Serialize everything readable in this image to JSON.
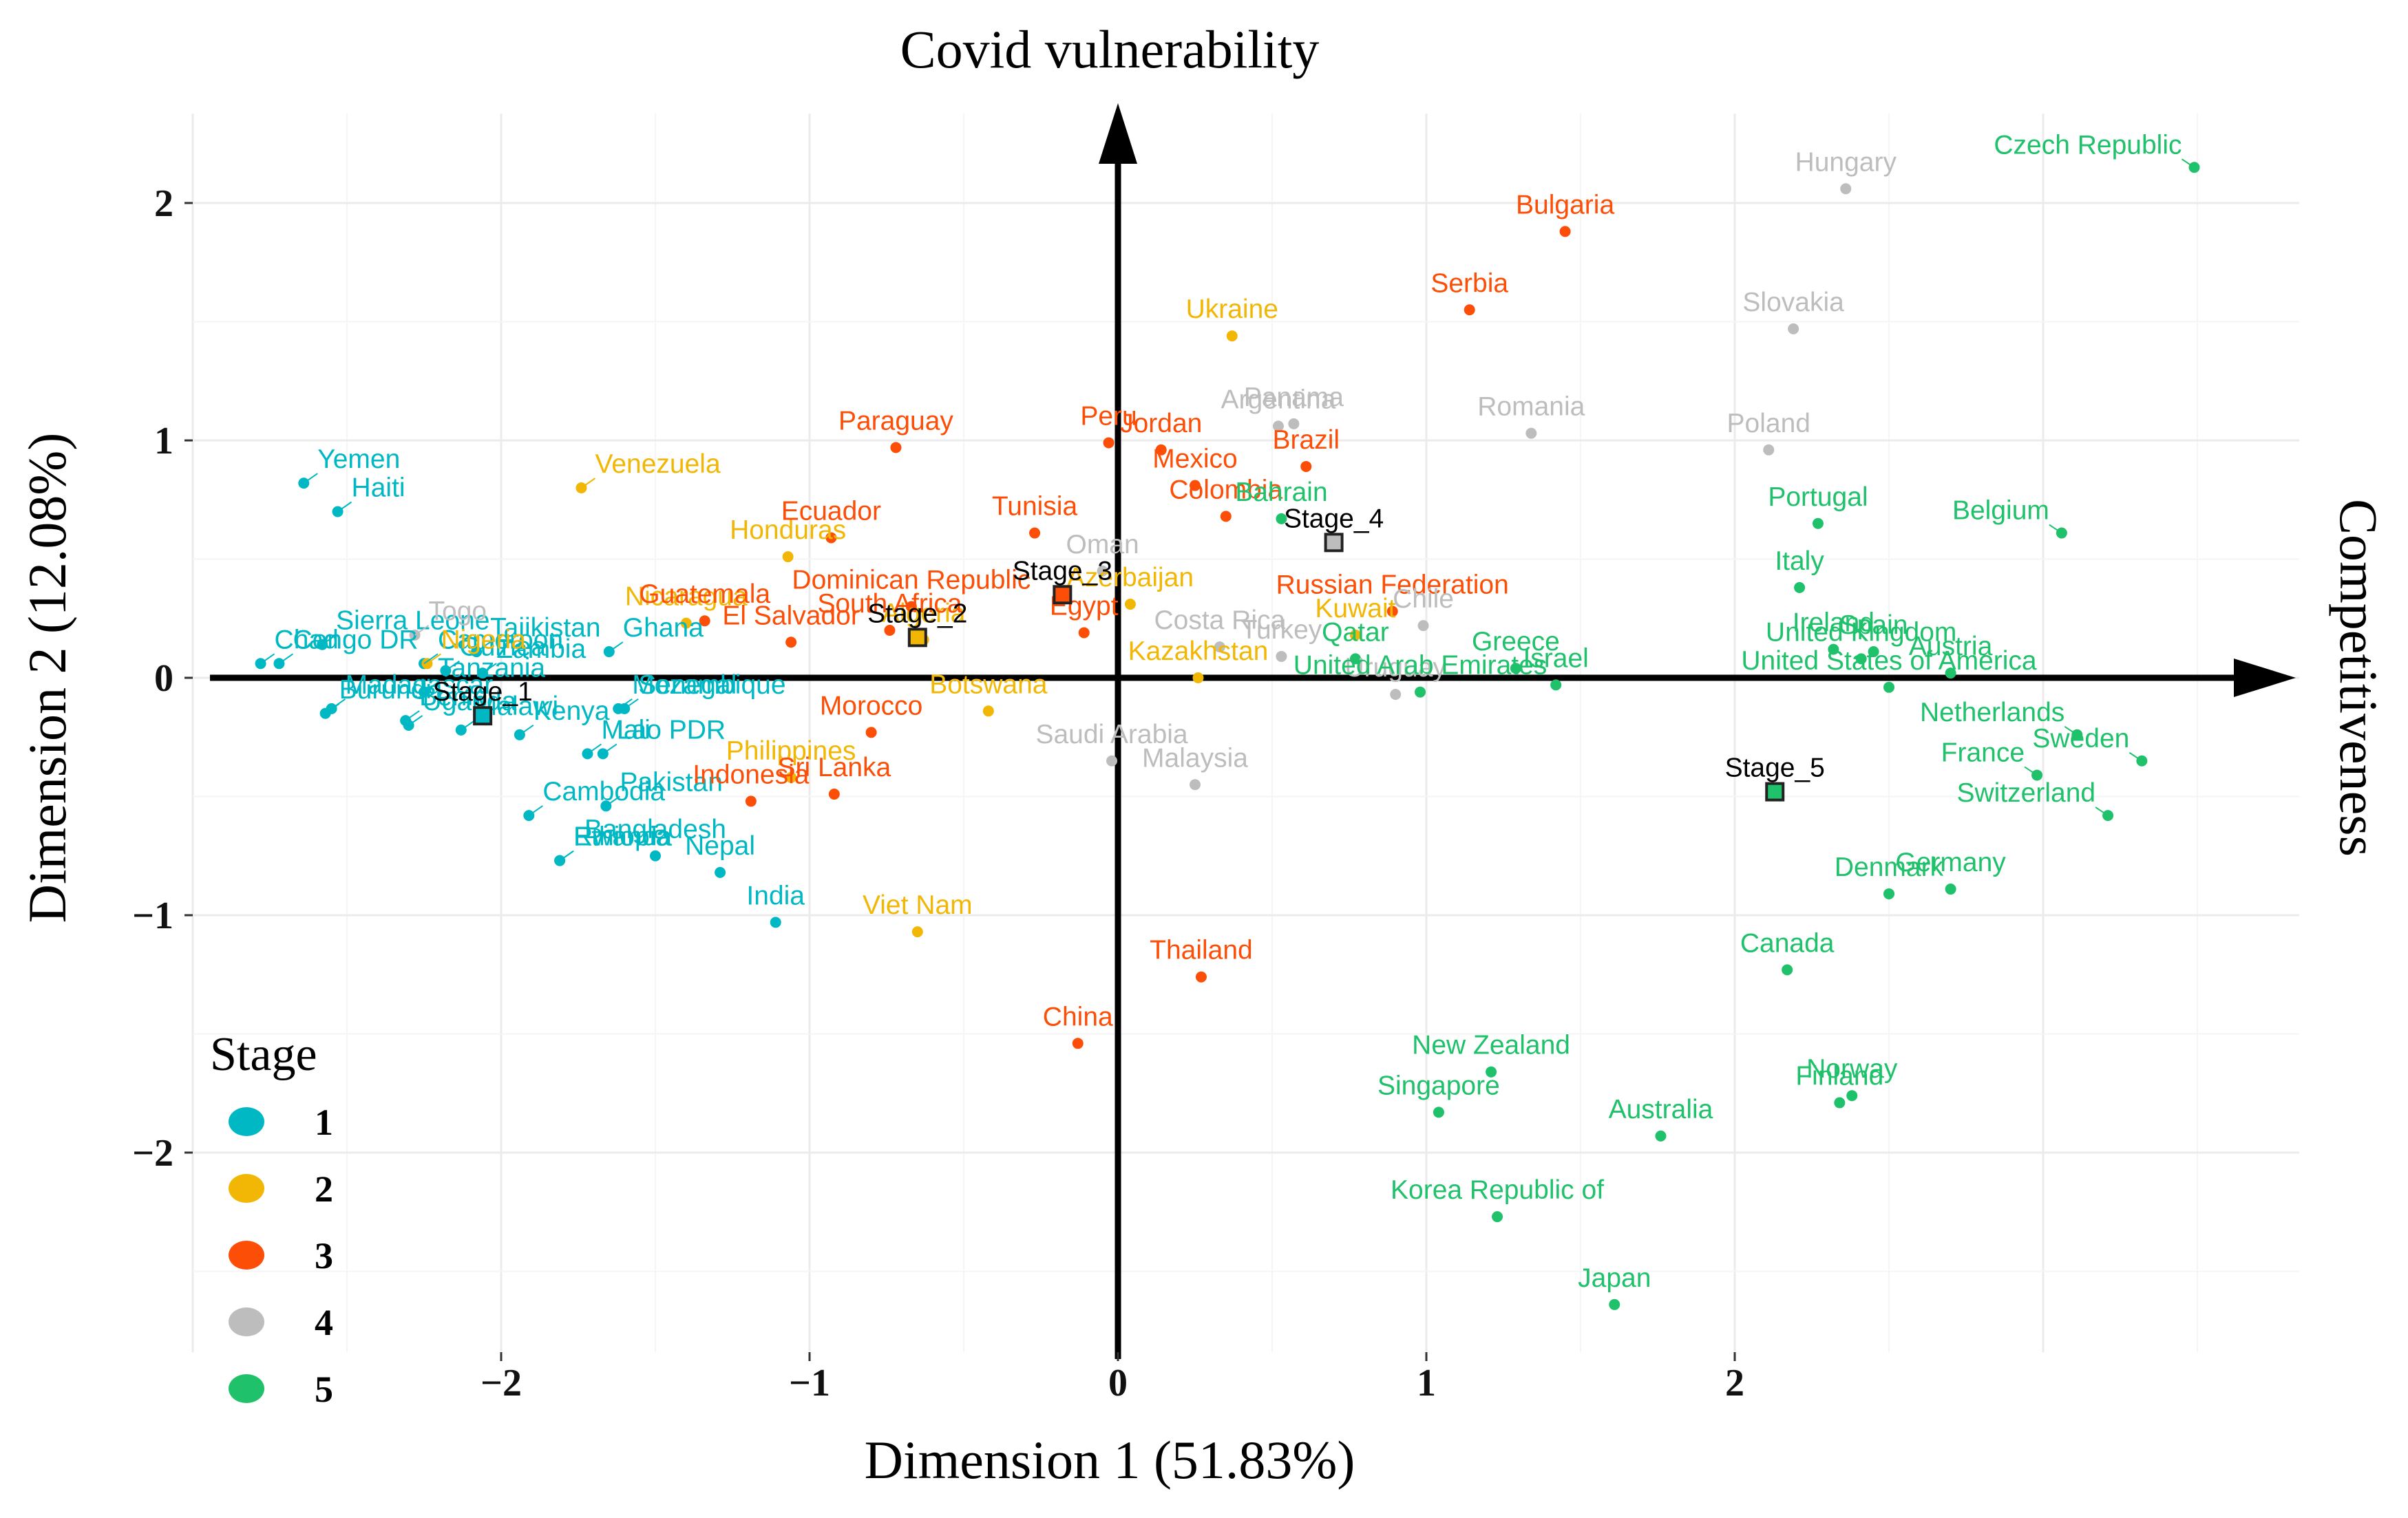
{
  "chart_data": {
    "type": "scatter",
    "title": "",
    "xlabel": "Dimension 1 (51.83%)",
    "ylabel": "Dimension 2 (12.08%)",
    "x_arrow_label": "Competitiveness",
    "y_arrow_label": "Covid vulnerability",
    "xlim": [
      -3.0,
      3.8
    ],
    "ylim": [
      -2.9,
      2.4
    ],
    "x_ticks": [
      -2,
      -1,
      0,
      1,
      2
    ],
    "x_tick_labels": [
      "−2",
      "−1",
      "0",
      "1",
      "2"
    ],
    "y_ticks": [
      -2,
      -1,
      0,
      1,
      2
    ],
    "y_tick_labels": [
      "−2",
      "−1",
      "0",
      "1",
      "2"
    ],
    "legend": {
      "title": "Stage",
      "position": "bottom-left",
      "items": [
        {
          "label": "1",
          "color": "#00b8c4"
        },
        {
          "label": "2",
          "color": "#f2b705"
        },
        {
          "label": "3",
          "color": "#fc4e07"
        },
        {
          "label": "4",
          "color": "#bdbdbd"
        },
        {
          "label": "5",
          "color": "#1fc16b"
        }
      ]
    },
    "stage_colors": {
      "1": "#00b8c4",
      "2": "#f2b705",
      "3": "#fc4e07",
      "4": "#bdbdbd",
      "5": "#1fc16b"
    },
    "points": [
      {
        "name": "Yemen",
        "stage": "1",
        "x": -2.64,
        "y": 0.82
      },
      {
        "name": "Haiti",
        "stage": "1",
        "x": -2.53,
        "y": 0.7
      },
      {
        "name": "Sierra Leone",
        "stage": "1",
        "x": -2.58,
        "y": 0.14
      },
      {
        "name": "Chad",
        "stage": "1",
        "x": -2.78,
        "y": 0.06
      },
      {
        "name": "Congo DR",
        "stage": "1",
        "x": -2.72,
        "y": 0.06
      },
      {
        "name": "Cameroon",
        "stage": "1",
        "x": -2.25,
        "y": 0.06
      },
      {
        "name": "Madagascar",
        "stage": "1",
        "x": -2.55,
        "y": -0.13
      },
      {
        "name": "Burundi",
        "stage": "1",
        "x": -2.57,
        "y": -0.15
      },
      {
        "name": "Benin",
        "stage": "1",
        "x": -2.31,
        "y": -0.18
      },
      {
        "name": "Uganda",
        "stage": "1",
        "x": -2.3,
        "y": -0.2
      },
      {
        "name": "Tanzania",
        "stage": "1",
        "x": -2.25,
        "y": -0.06
      },
      {
        "name": "Tajikistan",
        "stage": "1",
        "x": -2.08,
        "y": 0.11
      },
      {
        "name": "Guinea",
        "stage": "1",
        "x": -2.18,
        "y": 0.03
      },
      {
        "name": "Zambia",
        "stage": "1",
        "x": -2.06,
        "y": 0.02
      },
      {
        "name": "Ghana",
        "stage": "1",
        "x": -1.65,
        "y": 0.11
      },
      {
        "name": "Mozambique",
        "stage": "1",
        "x": -1.62,
        "y": -0.13
      },
      {
        "name": "Malawi",
        "stage": "1",
        "x": -2.13,
        "y": -0.22
      },
      {
        "name": "Senegal",
        "stage": "1",
        "x": -1.6,
        "y": -0.13
      },
      {
        "name": "Kenya",
        "stage": "1",
        "x": -1.94,
        "y": -0.24
      },
      {
        "name": "Mali",
        "stage": "1",
        "x": -1.72,
        "y": -0.32
      },
      {
        "name": "Lao PDR",
        "stage": "1",
        "x": -1.67,
        "y": -0.32
      },
      {
        "name": "Pakistan",
        "stage": "1",
        "x": -1.66,
        "y": -0.54
      },
      {
        "name": "Cambodia",
        "stage": "1",
        "x": -1.91,
        "y": -0.58
      },
      {
        "name": "Rwanda",
        "stage": "1",
        "x": -1.81,
        "y": -0.77
      },
      {
        "name": "Ethiopia",
        "stage": "1",
        "x": -1.81,
        "y": -0.77
      },
      {
        "name": "Bangladesh",
        "stage": "1",
        "x": -1.5,
        "y": -0.75
      },
      {
        "name": "Nepal",
        "stage": "1",
        "x": -1.29,
        "y": -0.82
      },
      {
        "name": "India",
        "stage": "1",
        "x": -1.11,
        "y": -1.03
      },
      {
        "name": "Venezuela",
        "stage": "2",
        "x": -1.74,
        "y": 0.8
      },
      {
        "name": "Nigeria",
        "stage": "2",
        "x": -2.24,
        "y": 0.06
      },
      {
        "name": "Nicaragua",
        "stage": "2",
        "x": -1.4,
        "y": 0.23
      },
      {
        "name": "Honduras",
        "stage": "2",
        "x": -1.07,
        "y": 0.51
      },
      {
        "name": "Ukraine",
        "stage": "2",
        "x": 0.37,
        "y": 1.44
      },
      {
        "name": "Azerbaijan",
        "stage": "2",
        "x": 0.04,
        "y": 0.31
      },
      {
        "name": "Algeria",
        "stage": "2",
        "x": -0.63,
        "y": 0.16
      },
      {
        "name": "Botswana",
        "stage": "2",
        "x": -0.42,
        "y": -0.14
      },
      {
        "name": "Philippines",
        "stage": "2",
        "x": -1.06,
        "y": -0.42
      },
      {
        "name": "Viet Nam",
        "stage": "2",
        "x": -0.65,
        "y": -1.07
      },
      {
        "name": "Kuwait",
        "stage": "2",
        "x": 0.77,
        "y": 0.18
      },
      {
        "name": "Kazakhstan",
        "stage": "2",
        "x": 0.26,
        "y": 0.0
      },
      {
        "name": "Bulgaria",
        "stage": "3",
        "x": 1.45,
        "y": 1.88
      },
      {
        "name": "Serbia",
        "stage": "3",
        "x": 1.14,
        "y": 1.55
      },
      {
        "name": "Paraguay",
        "stage": "3",
        "x": -0.72,
        "y": 0.97
      },
      {
        "name": "Peru",
        "stage": "3",
        "x": -0.03,
        "y": 0.99
      },
      {
        "name": "Jordan",
        "stage": "3",
        "x": 0.14,
        "y": 0.96
      },
      {
        "name": "Brazil",
        "stage": "3",
        "x": 0.61,
        "y": 0.89
      },
      {
        "name": "Mexico",
        "stage": "3",
        "x": 0.25,
        "y": 0.81
      },
      {
        "name": "Tunisia",
        "stage": "3",
        "x": -0.27,
        "y": 0.61
      },
      {
        "name": "Colombia",
        "stage": "3",
        "x": 0.35,
        "y": 0.68
      },
      {
        "name": "Ecuador",
        "stage": "3",
        "x": -0.93,
        "y": 0.59
      },
      {
        "name": "Guatemala",
        "stage": "3",
        "x": -1.34,
        "y": 0.24
      },
      {
        "name": "El Salvador",
        "stage": "3",
        "x": -1.06,
        "y": 0.15
      },
      {
        "name": "Dominican Republic",
        "stage": "3",
        "x": -0.67,
        "y": 0.3
      },
      {
        "name": "South Africa",
        "stage": "3",
        "x": -0.74,
        "y": 0.2
      },
      {
        "name": "Egypt",
        "stage": "3",
        "x": -0.11,
        "y": 0.19
      },
      {
        "name": "Russian Federation",
        "stage": "3",
        "x": 0.89,
        "y": 0.28
      },
      {
        "name": "Morocco",
        "stage": "3",
        "x": -0.8,
        "y": -0.23
      },
      {
        "name": "Sri Lanka",
        "stage": "3",
        "x": -0.92,
        "y": -0.49
      },
      {
        "name": "Indonesia",
        "stage": "3",
        "x": -1.19,
        "y": -0.52
      },
      {
        "name": "Thailand",
        "stage": "3",
        "x": 0.27,
        "y": -1.26
      },
      {
        "name": "China",
        "stage": "3",
        "x": -0.13,
        "y": -1.54
      },
      {
        "name": "Hungary",
        "stage": "4",
        "x": 2.36,
        "y": 2.06
      },
      {
        "name": "Slovakia",
        "stage": "4",
        "x": 2.19,
        "y": 1.47
      },
      {
        "name": "Argentina",
        "stage": "4",
        "x": 0.52,
        "y": 1.06
      },
      {
        "name": "Panama",
        "stage": "4",
        "x": 0.57,
        "y": 1.07
      },
      {
        "name": "Romania",
        "stage": "4",
        "x": 1.34,
        "y": 1.03
      },
      {
        "name": "Poland",
        "stage": "4",
        "x": 2.11,
        "y": 0.96
      },
      {
        "name": "Oman",
        "stage": "4",
        "x": -0.05,
        "y": 0.45
      },
      {
        "name": "Chile",
        "stage": "4",
        "x": 0.99,
        "y": 0.22
      },
      {
        "name": "Costa Rica",
        "stage": "4",
        "x": 0.33,
        "y": 0.13
      },
      {
        "name": "Turkey",
        "stage": "4",
        "x": 0.53,
        "y": 0.09
      },
      {
        "name": "Uruguay",
        "stage": "4",
        "x": 0.9,
        "y": -0.07
      },
      {
        "name": "Saudi Arabia",
        "stage": "4",
        "x": -0.02,
        "y": -0.35
      },
      {
        "name": "Malaysia",
        "stage": "4",
        "x": 0.25,
        "y": -0.45
      },
      {
        "name": "Togo",
        "stage": "4",
        "x": -2.28,
        "y": 0.18
      },
      {
        "name": "Czech Republic",
        "stage": "5",
        "x": 3.49,
        "y": 2.15
      },
      {
        "name": "Portugal",
        "stage": "5",
        "x": 2.27,
        "y": 0.65
      },
      {
        "name": "Belgium",
        "stage": "5",
        "x": 3.06,
        "y": 0.61
      },
      {
        "name": "Italy",
        "stage": "5",
        "x": 2.21,
        "y": 0.38
      },
      {
        "name": "Ireland",
        "stage": "5",
        "x": 2.32,
        "y": 0.12
      },
      {
        "name": "Spain",
        "stage": "5",
        "x": 2.45,
        "y": 0.11
      },
      {
        "name": "Austria",
        "stage": "5",
        "x": 2.7,
        "y": 0.02
      },
      {
        "name": "Bahrain",
        "stage": "5",
        "x": 0.53,
        "y": 0.67
      },
      {
        "name": "Qatar",
        "stage": "5",
        "x": 0.77,
        "y": 0.08
      },
      {
        "name": "Greece",
        "stage": "5",
        "x": 1.29,
        "y": 0.04
      },
      {
        "name": "United Arab Emirates",
        "stage": "5",
        "x": 0.98,
        "y": -0.06
      },
      {
        "name": "United States of America",
        "stage": "5",
        "x": 2.5,
        "y": -0.04
      },
      {
        "name": "Israel",
        "stage": "5",
        "x": 1.42,
        "y": -0.03
      },
      {
        "name": "United Kingdom",
        "stage": "5",
        "x": 2.41,
        "y": 0.08
      },
      {
        "name": "Netherlands",
        "stage": "5",
        "x": 3.11,
        "y": -0.24
      },
      {
        "name": "Sweden",
        "stage": "5",
        "x": 3.32,
        "y": -0.35
      },
      {
        "name": "France",
        "stage": "5",
        "x": 2.98,
        "y": -0.41
      },
      {
        "name": "Switzerland",
        "stage": "5",
        "x": 3.21,
        "y": -0.58
      },
      {
        "name": "Germany",
        "stage": "5",
        "x": 2.7,
        "y": -0.89
      },
      {
        "name": "Denmark",
        "stage": "5",
        "x": 2.5,
        "y": -0.91
      },
      {
        "name": "Canada",
        "stage": "5",
        "x": 2.17,
        "y": -1.23
      },
      {
        "name": "New Zealand",
        "stage": "5",
        "x": 1.21,
        "y": -1.66
      },
      {
        "name": "Norway",
        "stage": "5",
        "x": 2.38,
        "y": -1.76
      },
      {
        "name": "Finland",
        "stage": "5",
        "x": 2.34,
        "y": -1.79
      },
      {
        "name": "Singapore",
        "stage": "5",
        "x": 1.04,
        "y": -1.83
      },
      {
        "name": "Australia",
        "stage": "5",
        "x": 1.76,
        "y": -1.93
      },
      {
        "name": "Korea Republic of",
        "stage": "5",
        "x": 1.23,
        "y": -2.27
      },
      {
        "name": "Japan",
        "stage": "5",
        "x": 1.61,
        "y": -2.64
      }
    ],
    "stage_centroids": [
      {
        "name": "Stage_1",
        "stage": "1",
        "x": -2.06,
        "y": -0.16
      },
      {
        "name": "Stage_2",
        "stage": "2",
        "x": -0.65,
        "y": 0.17
      },
      {
        "name": "Stage_3",
        "stage": "3",
        "x": -0.18,
        "y": 0.35
      },
      {
        "name": "Stage_4",
        "stage": "4",
        "x": 0.7,
        "y": 0.57
      },
      {
        "name": "Stage_5",
        "stage": "5",
        "x": 2.13,
        "y": -0.48
      }
    ]
  }
}
